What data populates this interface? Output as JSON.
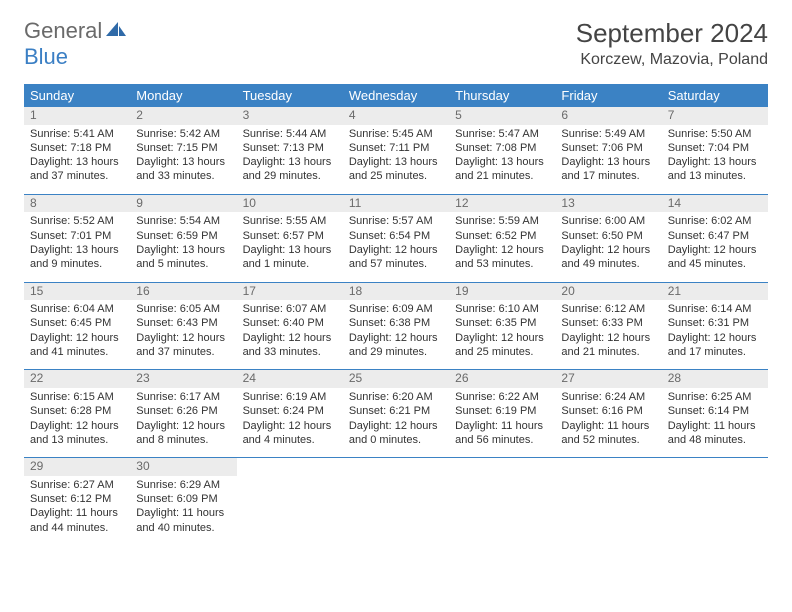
{
  "logo": {
    "text1": "General",
    "text2": "Blue"
  },
  "title": "September 2024",
  "location": "Korczew, Mazovia, Poland",
  "day_headers": [
    "Sunday",
    "Monday",
    "Tuesday",
    "Wednesday",
    "Thursday",
    "Friday",
    "Saturday"
  ],
  "colors": {
    "header_bg": "#3b82c4",
    "header_fg": "#ffffff",
    "daynum_bg": "#ececec",
    "rule": "#3b82c4",
    "text": "#333333",
    "logo_gray": "#6a6a6a",
    "logo_blue": "#3b7fc4"
  },
  "weeks": [
    [
      {
        "n": "1",
        "sunrise": "Sunrise: 5:41 AM",
        "sunset": "Sunset: 7:18 PM",
        "d1": "Daylight: 13 hours",
        "d2": "and 37 minutes."
      },
      {
        "n": "2",
        "sunrise": "Sunrise: 5:42 AM",
        "sunset": "Sunset: 7:15 PM",
        "d1": "Daylight: 13 hours",
        "d2": "and 33 minutes."
      },
      {
        "n": "3",
        "sunrise": "Sunrise: 5:44 AM",
        "sunset": "Sunset: 7:13 PM",
        "d1": "Daylight: 13 hours",
        "d2": "and 29 minutes."
      },
      {
        "n": "4",
        "sunrise": "Sunrise: 5:45 AM",
        "sunset": "Sunset: 7:11 PM",
        "d1": "Daylight: 13 hours",
        "d2": "and 25 minutes."
      },
      {
        "n": "5",
        "sunrise": "Sunrise: 5:47 AM",
        "sunset": "Sunset: 7:08 PM",
        "d1": "Daylight: 13 hours",
        "d2": "and 21 minutes."
      },
      {
        "n": "6",
        "sunrise": "Sunrise: 5:49 AM",
        "sunset": "Sunset: 7:06 PM",
        "d1": "Daylight: 13 hours",
        "d2": "and 17 minutes."
      },
      {
        "n": "7",
        "sunrise": "Sunrise: 5:50 AM",
        "sunset": "Sunset: 7:04 PM",
        "d1": "Daylight: 13 hours",
        "d2": "and 13 minutes."
      }
    ],
    [
      {
        "n": "8",
        "sunrise": "Sunrise: 5:52 AM",
        "sunset": "Sunset: 7:01 PM",
        "d1": "Daylight: 13 hours",
        "d2": "and 9 minutes."
      },
      {
        "n": "9",
        "sunrise": "Sunrise: 5:54 AM",
        "sunset": "Sunset: 6:59 PM",
        "d1": "Daylight: 13 hours",
        "d2": "and 5 minutes."
      },
      {
        "n": "10",
        "sunrise": "Sunrise: 5:55 AM",
        "sunset": "Sunset: 6:57 PM",
        "d1": "Daylight: 13 hours",
        "d2": "and 1 minute."
      },
      {
        "n": "11",
        "sunrise": "Sunrise: 5:57 AM",
        "sunset": "Sunset: 6:54 PM",
        "d1": "Daylight: 12 hours",
        "d2": "and 57 minutes."
      },
      {
        "n": "12",
        "sunrise": "Sunrise: 5:59 AM",
        "sunset": "Sunset: 6:52 PM",
        "d1": "Daylight: 12 hours",
        "d2": "and 53 minutes."
      },
      {
        "n": "13",
        "sunrise": "Sunrise: 6:00 AM",
        "sunset": "Sunset: 6:50 PM",
        "d1": "Daylight: 12 hours",
        "d2": "and 49 minutes."
      },
      {
        "n": "14",
        "sunrise": "Sunrise: 6:02 AM",
        "sunset": "Sunset: 6:47 PM",
        "d1": "Daylight: 12 hours",
        "d2": "and 45 minutes."
      }
    ],
    [
      {
        "n": "15",
        "sunrise": "Sunrise: 6:04 AM",
        "sunset": "Sunset: 6:45 PM",
        "d1": "Daylight: 12 hours",
        "d2": "and 41 minutes."
      },
      {
        "n": "16",
        "sunrise": "Sunrise: 6:05 AM",
        "sunset": "Sunset: 6:43 PM",
        "d1": "Daylight: 12 hours",
        "d2": "and 37 minutes."
      },
      {
        "n": "17",
        "sunrise": "Sunrise: 6:07 AM",
        "sunset": "Sunset: 6:40 PM",
        "d1": "Daylight: 12 hours",
        "d2": "and 33 minutes."
      },
      {
        "n": "18",
        "sunrise": "Sunrise: 6:09 AM",
        "sunset": "Sunset: 6:38 PM",
        "d1": "Daylight: 12 hours",
        "d2": "and 29 minutes."
      },
      {
        "n": "19",
        "sunrise": "Sunrise: 6:10 AM",
        "sunset": "Sunset: 6:35 PM",
        "d1": "Daylight: 12 hours",
        "d2": "and 25 minutes."
      },
      {
        "n": "20",
        "sunrise": "Sunrise: 6:12 AM",
        "sunset": "Sunset: 6:33 PM",
        "d1": "Daylight: 12 hours",
        "d2": "and 21 minutes."
      },
      {
        "n": "21",
        "sunrise": "Sunrise: 6:14 AM",
        "sunset": "Sunset: 6:31 PM",
        "d1": "Daylight: 12 hours",
        "d2": "and 17 minutes."
      }
    ],
    [
      {
        "n": "22",
        "sunrise": "Sunrise: 6:15 AM",
        "sunset": "Sunset: 6:28 PM",
        "d1": "Daylight: 12 hours",
        "d2": "and 13 minutes."
      },
      {
        "n": "23",
        "sunrise": "Sunrise: 6:17 AM",
        "sunset": "Sunset: 6:26 PM",
        "d1": "Daylight: 12 hours",
        "d2": "and 8 minutes."
      },
      {
        "n": "24",
        "sunrise": "Sunrise: 6:19 AM",
        "sunset": "Sunset: 6:24 PM",
        "d1": "Daylight: 12 hours",
        "d2": "and 4 minutes."
      },
      {
        "n": "25",
        "sunrise": "Sunrise: 6:20 AM",
        "sunset": "Sunset: 6:21 PM",
        "d1": "Daylight: 12 hours",
        "d2": "and 0 minutes."
      },
      {
        "n": "26",
        "sunrise": "Sunrise: 6:22 AM",
        "sunset": "Sunset: 6:19 PM",
        "d1": "Daylight: 11 hours",
        "d2": "and 56 minutes."
      },
      {
        "n": "27",
        "sunrise": "Sunrise: 6:24 AM",
        "sunset": "Sunset: 6:16 PM",
        "d1": "Daylight: 11 hours",
        "d2": "and 52 minutes."
      },
      {
        "n": "28",
        "sunrise": "Sunrise: 6:25 AM",
        "sunset": "Sunset: 6:14 PM",
        "d1": "Daylight: 11 hours",
        "d2": "and 48 minutes."
      }
    ],
    [
      {
        "n": "29",
        "sunrise": "Sunrise: 6:27 AM",
        "sunset": "Sunset: 6:12 PM",
        "d1": "Daylight: 11 hours",
        "d2": "and 44 minutes."
      },
      {
        "n": "30",
        "sunrise": "Sunrise: 6:29 AM",
        "sunset": "Sunset: 6:09 PM",
        "d1": "Daylight: 11 hours",
        "d2": "and 40 minutes."
      },
      {
        "empty": true
      },
      {
        "empty": true
      },
      {
        "empty": true
      },
      {
        "empty": true
      },
      {
        "empty": true
      }
    ]
  ]
}
